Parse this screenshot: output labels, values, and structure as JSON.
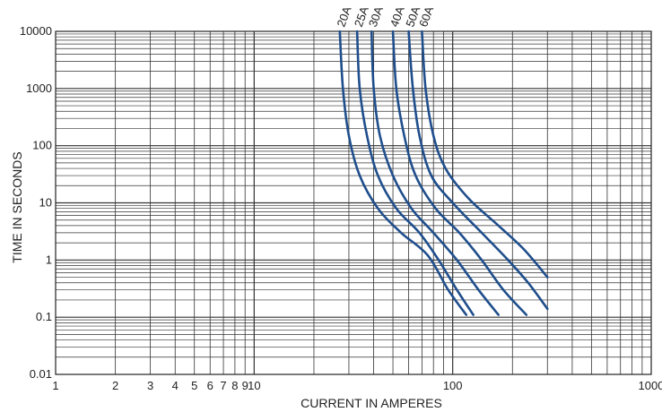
{
  "chart_data": {
    "type": "line",
    "title": "",
    "xlabel": "CURRENT IN AMPERES",
    "ylabel": "TIME IN SECONDS",
    "xscale": "log",
    "yscale": "log",
    "xlim": [
      1,
      1000
    ],
    "ylim": [
      0.01,
      10000
    ],
    "grid": true,
    "legend": "curve labels at top of each curve",
    "line_color": "#1f4e8c",
    "x_ticks": [
      {
        "value": 1,
        "label": "1"
      },
      {
        "value": 2,
        "label": "2"
      },
      {
        "value": 3,
        "label": "3"
      },
      {
        "value": 4,
        "label": "4"
      },
      {
        "value": 5,
        "label": "5"
      },
      {
        "value": 6,
        "label": "6"
      },
      {
        "value": 7,
        "label": "7"
      },
      {
        "value": 8,
        "label": "8"
      },
      {
        "value": 9,
        "label": "9"
      },
      {
        "value": 10,
        "label": "10"
      },
      {
        "value": 100,
        "label": "100"
      },
      {
        "value": 1000,
        "label": "1000"
      }
    ],
    "y_ticks": [
      {
        "value": 10000,
        "label": "10000"
      },
      {
        "value": 1000,
        "label": "1000"
      },
      {
        "value": 100,
        "label": "100"
      },
      {
        "value": 10,
        "label": "10"
      },
      {
        "value": 1,
        "label": "1"
      },
      {
        "value": 0.1,
        "label": "0.1"
      },
      {
        "value": 0.01,
        "label": "0.01"
      }
    ],
    "series": [
      {
        "name": "20A",
        "points": [
          [
            27,
            10000
          ],
          [
            28,
            1000
          ],
          [
            30,
            150
          ],
          [
            34,
            30
          ],
          [
            42,
            8
          ],
          [
            55,
            3
          ],
          [
            75,
            1.2
          ],
          [
            95,
            0.3
          ],
          [
            117,
            0.11
          ]
        ]
      },
      {
        "name": "25A",
        "points": [
          [
            33,
            10000
          ],
          [
            34,
            1000
          ],
          [
            37,
            150
          ],
          [
            42,
            30
          ],
          [
            52,
            8
          ],
          [
            68,
            3
          ],
          [
            85,
            1
          ],
          [
            105,
            0.3
          ],
          [
            127,
            0.11
          ]
        ]
      },
      {
        "name": "30A",
        "points": [
          [
            39,
            10000
          ],
          [
            40,
            1000
          ],
          [
            43,
            150
          ],
          [
            50,
            30
          ],
          [
            62,
            8
          ],
          [
            80,
            3
          ],
          [
            105,
            1
          ],
          [
            135,
            0.3
          ],
          [
            170,
            0.11
          ]
        ]
      },
      {
        "name": "40A",
        "points": [
          [
            50,
            10000
          ],
          [
            52,
            1000
          ],
          [
            57,
            150
          ],
          [
            65,
            30
          ],
          [
            82,
            8
          ],
          [
            108,
            3
          ],
          [
            140,
            1
          ],
          [
            180,
            0.3
          ],
          [
            235,
            0.11
          ]
        ]
      },
      {
        "name": "50A",
        "points": [
          [
            60,
            10000
          ],
          [
            63,
            1000
          ],
          [
            68,
            150
          ],
          [
            78,
            30
          ],
          [
            100,
            10
          ],
          [
            140,
            3
          ],
          [
            190,
            1
          ],
          [
            240,
            0.4
          ],
          [
            300,
            0.14
          ]
        ]
      },
      {
        "name": "60A",
        "points": [
          [
            70,
            10000
          ],
          [
            73,
            1000
          ],
          [
            80,
            150
          ],
          [
            92,
            40
          ],
          [
            120,
            12
          ],
          [
            170,
            4
          ],
          [
            230,
            1.5
          ],
          [
            300,
            0.5
          ]
        ]
      }
    ]
  }
}
